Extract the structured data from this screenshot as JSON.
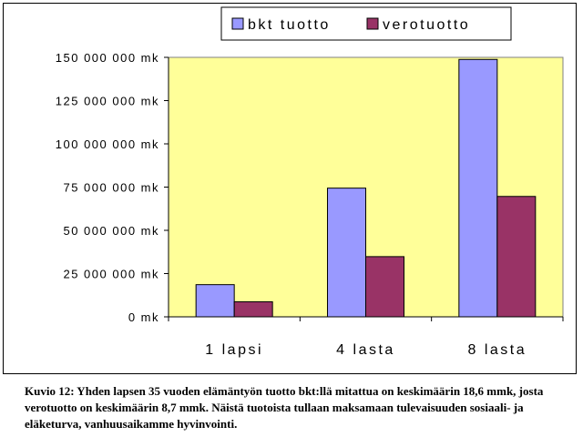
{
  "chart_data": {
    "type": "bar",
    "categories": [
      "1 lapsi",
      "4 lasta",
      "8 lasta"
    ],
    "series": [
      {
        "name": "bkt tuotto",
        "color": "#9999ff",
        "values": [
          18600000,
          74400000,
          148800000
        ]
      },
      {
        "name": "verotuotto",
        "color": "#993366",
        "values": [
          8700000,
          34800000,
          69600000
        ]
      }
    ],
    "y_ticks": [
      0,
      25000000,
      50000000,
      75000000,
      100000000,
      125000000,
      150000000
    ],
    "y_tick_labels": [
      "0 mk",
      "25 000 000 mk",
      "50 000 000 mk",
      "75 000 000 mk",
      "100 000 000 mk",
      "125 000 000 mk",
      "150 000 000 mk"
    ],
    "ylim": [
      0,
      150000000
    ],
    "xlabel": "",
    "ylabel": "",
    "grid": false,
    "legend_position": "top-right",
    "plot_background": "#ffff99"
  },
  "caption": "Kuvio 12: Yhden lapsen 35 vuoden elämäntyön tuotto bkt:llä mitattua on keskimäärin 18,6 mmk, josta verotuotto on keskimäärin  8,7 mmk. Näistä tuotoista tullaan maksamaan tulevaisuuden sosiaali- ja eläketurva, vanhuusaikamme hyvinvointi."
}
